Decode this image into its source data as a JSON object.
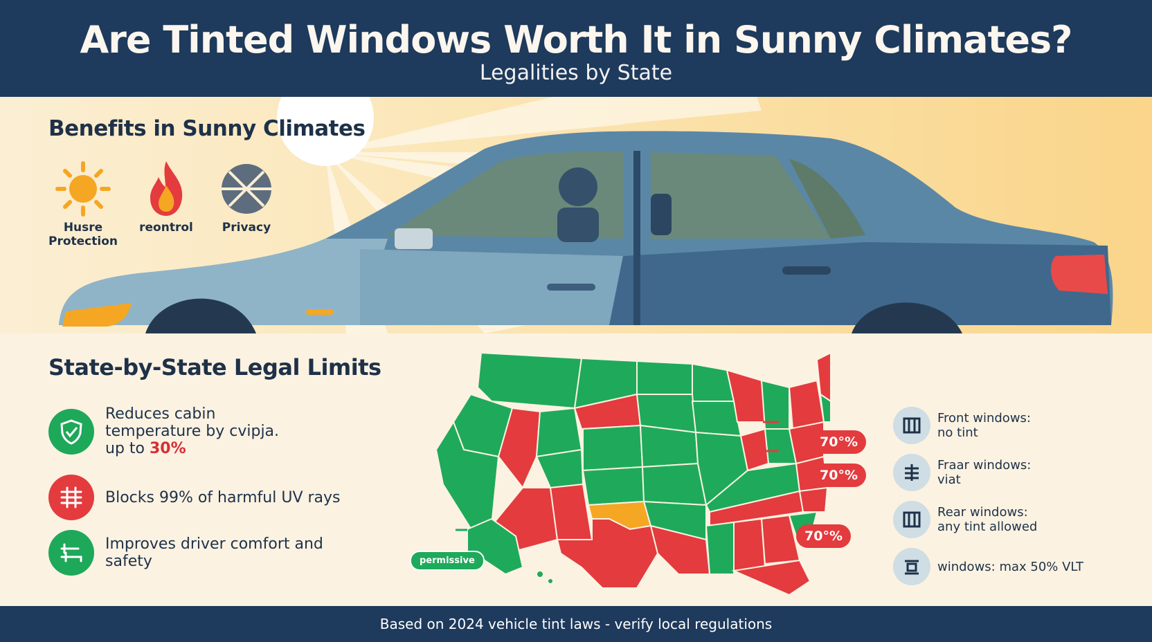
{
  "header": {
    "title": "Are Tinted Windows Worth It in Sunny Climates?",
    "subtitle": "Legalities by State"
  },
  "benefits": {
    "title": "Benefits in Sunny Climates",
    "items": [
      {
        "label_line1": "Husre",
        "label_line2": "Protection",
        "icon": "sun-icon"
      },
      {
        "label_line1": "reontrol",
        "label_line2": "",
        "icon": "flame-icon"
      },
      {
        "label_line1": "Privacy",
        "label_line2": "",
        "icon": "privacy-icon"
      }
    ]
  },
  "legal": {
    "title": "State-by-State Legal Limits",
    "facts": [
      {
        "line1": "Reduces cabin",
        "line2": "temperature by cvipja.",
        "line3_prefix": "up to ",
        "highlight": "30%",
        "icon": "shield-icon",
        "color": "#1ea85a"
      },
      {
        "text": "Blocks 99% of harmful UV rays",
        "icon": "uv-block-icon",
        "color": "#e33b3e"
      },
      {
        "line1": "Improves driver comfort and",
        "line2": "safety",
        "icon": "seat-icon",
        "color": "#1ea85a"
      }
    ]
  },
  "map": {
    "badges": [
      "70°%",
      "70°%",
      "70°%"
    ],
    "permissive_label": "permissive",
    "colors": {
      "permissive": "#1eaa5a",
      "strict": "#e33b3e",
      "moderate": "#f5a623"
    }
  },
  "rules": [
    {
      "line1": "Front windows:",
      "line2": "no tint",
      "icon": "window-icon"
    },
    {
      "line1": "Fraar windows:",
      "line2": "viat",
      "icon": "filter-icon"
    },
    {
      "line1": "Rear windows:",
      "line2": "any tint allowed",
      "icon": "window-icon"
    },
    {
      "line1": "windows: max 50% VLT",
      "line2": "",
      "icon": "tint-icon"
    }
  ],
  "footer": {
    "text": "Based on 2024 vehicle tint laws - verify local regulations"
  }
}
